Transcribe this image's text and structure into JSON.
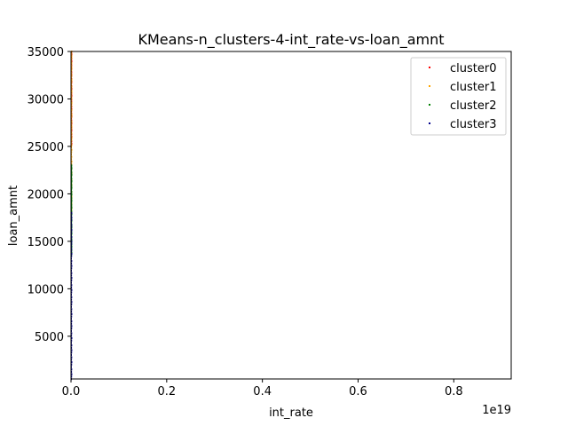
{
  "chart_data": {
    "type": "scatter",
    "title": "KMeans-n_clusters-4-int_rate-vs-loan_amnt",
    "xlabel": "int_rate",
    "ylabel": "loan_amnt",
    "x_offset_label": "1e19",
    "xlim": [
      0,
      0.92
    ],
    "ylim": [
      500,
      35000
    ],
    "x_ticks": [
      0,
      0.2,
      0.4,
      0.6,
      0.8
    ],
    "x_tick_labels": [
      "0.0",
      "0.2",
      "0.4",
      "0.6",
      "0.8"
    ],
    "y_ticks": [
      5000,
      10000,
      15000,
      20000,
      25000,
      30000,
      35000
    ],
    "y_tick_labels": [
      "5000",
      "10000",
      "15000",
      "20000",
      "25000",
      "30000",
      "35000"
    ],
    "grid": false,
    "legend_position": "top-right",
    "series": [
      {
        "name": "cluster0",
        "color": "#ff0000",
        "y_range": [
          25000,
          35000
        ],
        "x_value": 0
      },
      {
        "name": "cluster1",
        "color": "#ffa500",
        "y_range": [
          18000,
          35000
        ],
        "x_value": 0
      },
      {
        "name": "cluster2",
        "color": "#008000",
        "y_range": [
          13500,
          23000
        ],
        "x_value": 0
      },
      {
        "name": "cluster3",
        "color": "#00008b",
        "y_range": [
          500,
          18000
        ],
        "x_value": 0
      }
    ]
  }
}
